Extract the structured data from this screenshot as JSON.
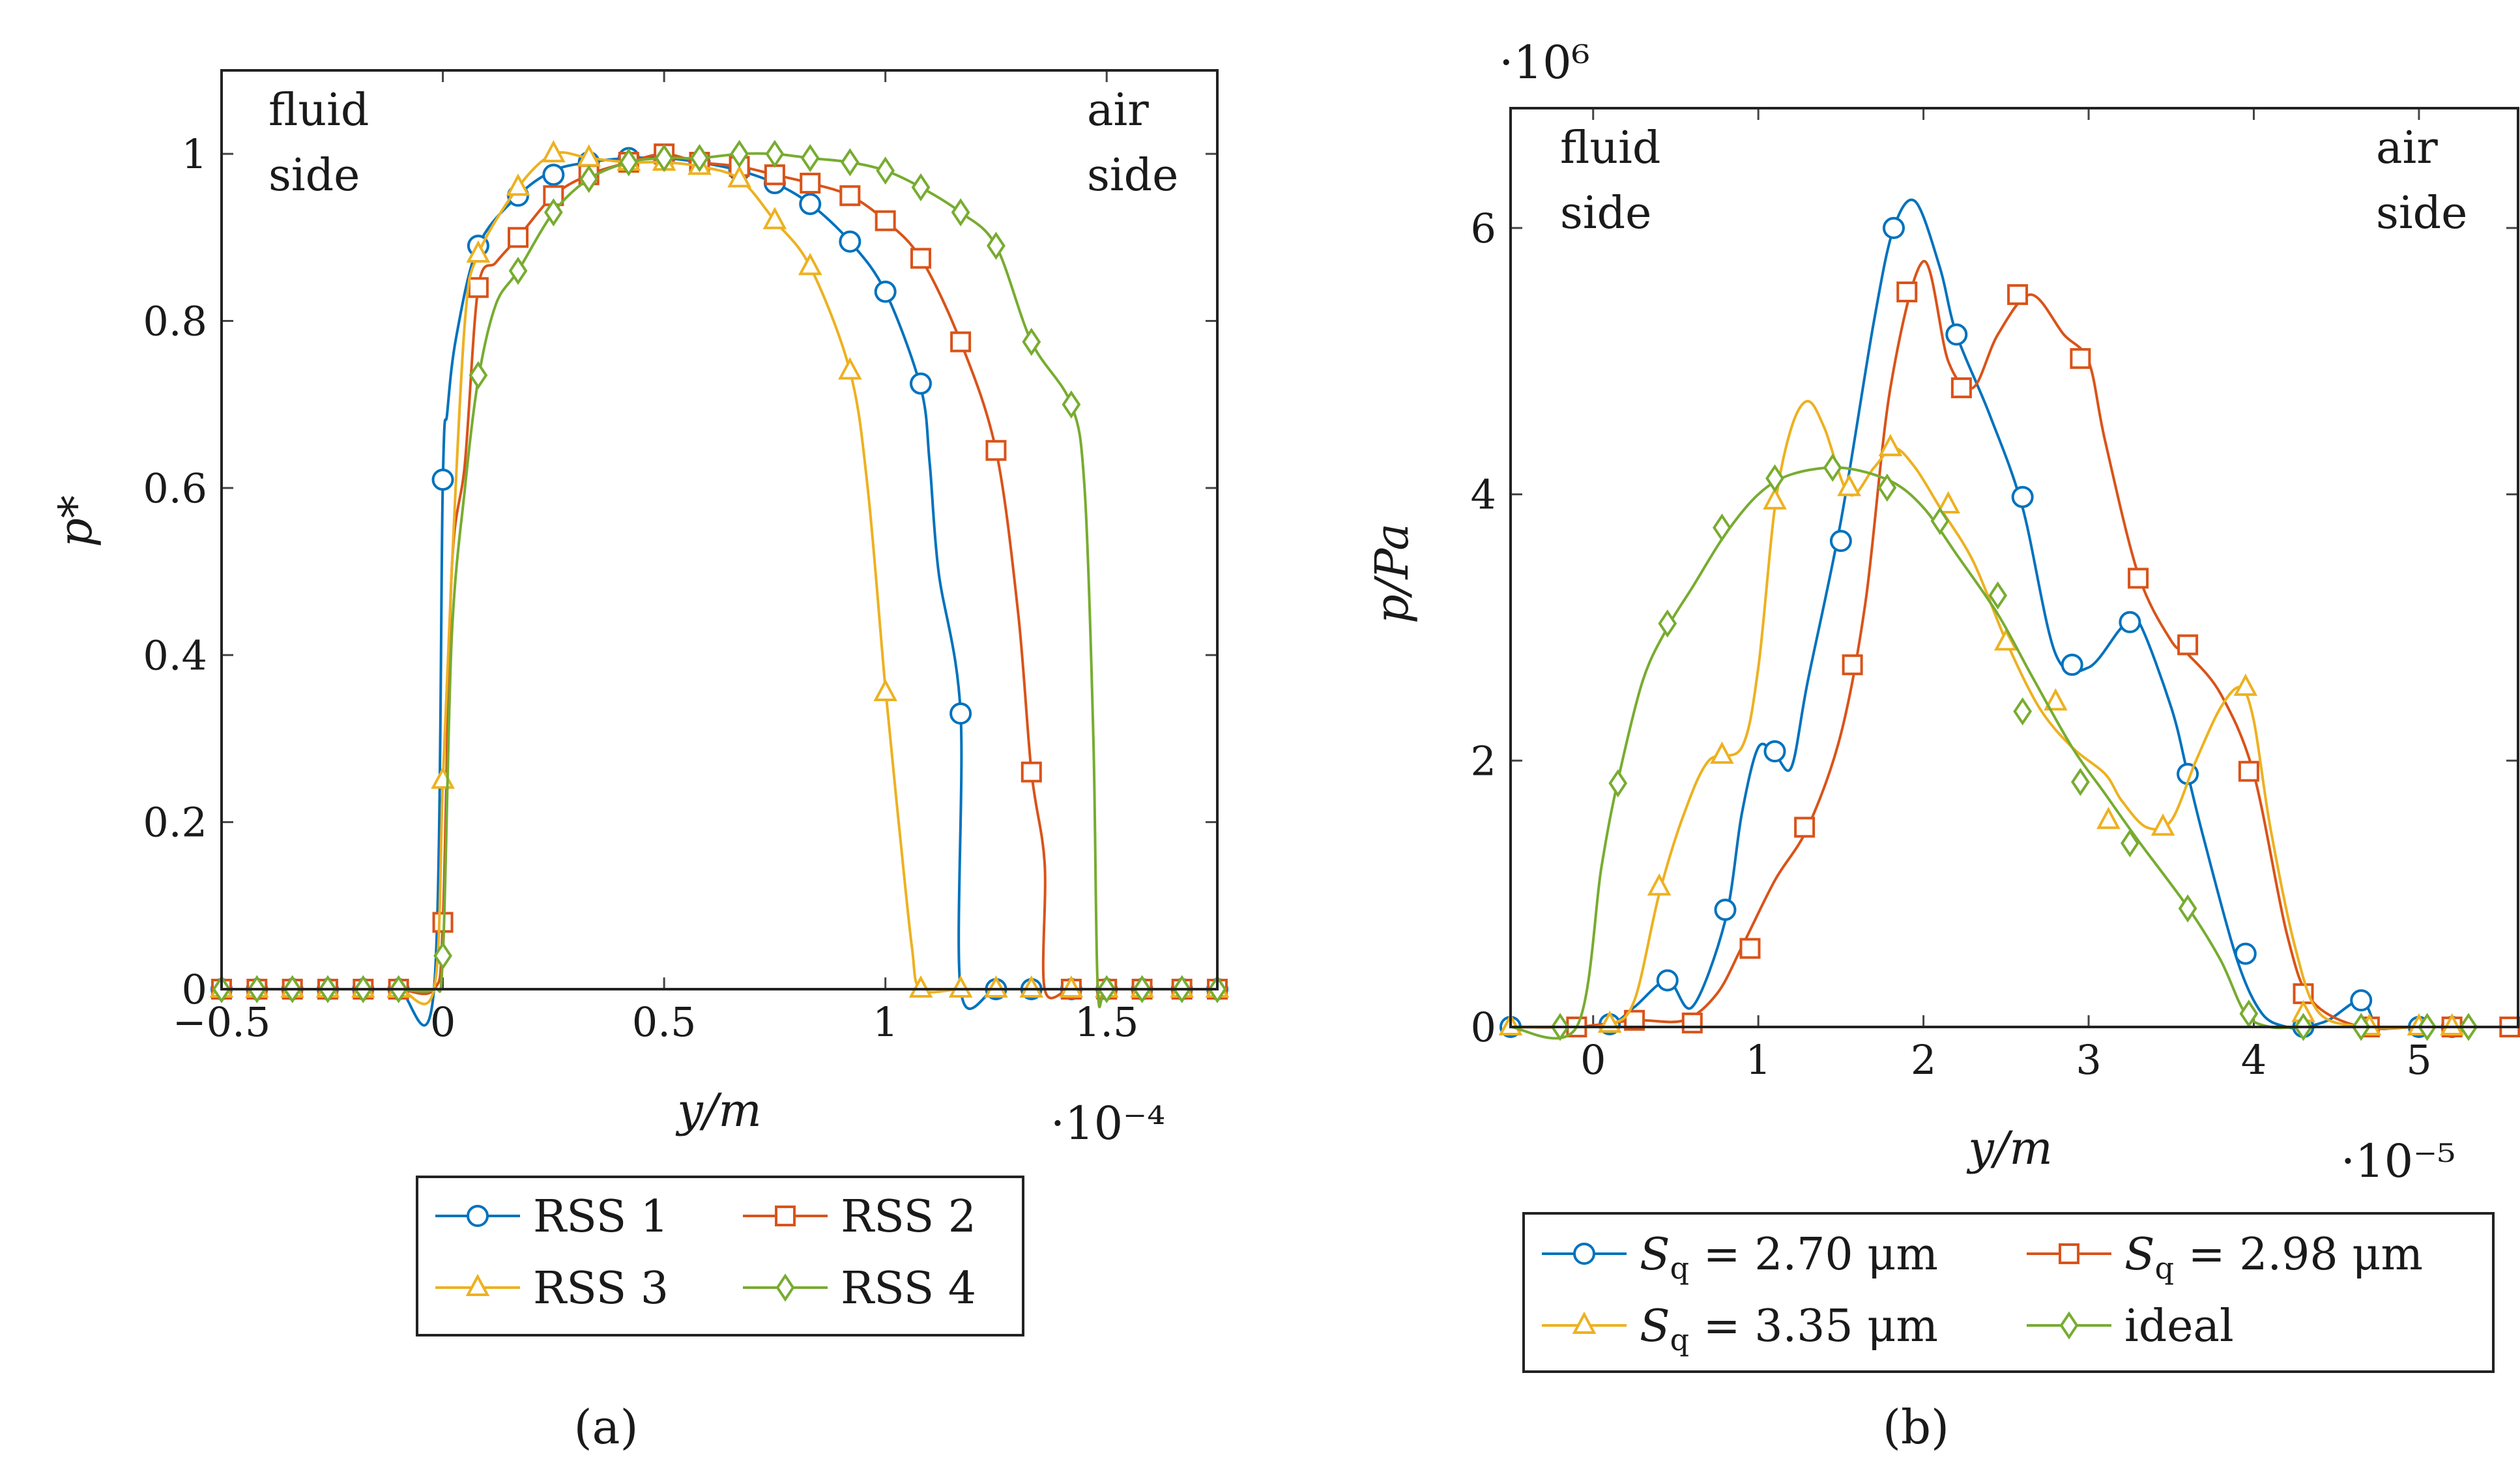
{
  "colors": {
    "s1": "#0072bd",
    "s2": "#d95319",
    "s3": "#edb120",
    "s4": "#77ac30"
  },
  "chart_data": [
    {
      "type": "line",
      "caption": "(a)",
      "xlabel": "y/m",
      "ylabel": "p*",
      "x_scale": "·10⁻⁴",
      "xlim": [
        -0.5,
        1.75
      ],
      "ylim": [
        0,
        1.1
      ],
      "xticks": [
        -0.5,
        0,
        0.5,
        1,
        1.5
      ],
      "xtick_labels": [
        "−0.5",
        "0",
        "0.5",
        "1",
        "1.5"
      ],
      "yticks": [
        0,
        0.2,
        0.4,
        0.6,
        0.8,
        1
      ],
      "ytick_labels": [
        "0",
        "0.2",
        "0.4",
        "0.6",
        "0.8",
        "1"
      ],
      "annotations": {
        "left": [
          "fluid",
          "side"
        ],
        "right": [
          "air",
          "side"
        ]
      },
      "series": [
        {
          "name": "RSS 1",
          "marker": "circle",
          "color": "s1",
          "x": [
            -0.5,
            -0.42,
            -0.34,
            -0.26,
            -0.18,
            -0.1,
            -0.02,
            0,
            0.01,
            0.03,
            0.08,
            0.17,
            0.25,
            0.33,
            0.42,
            0.5,
            0.58,
            0.67,
            0.75,
            0.83,
            0.92,
            1,
            1.08,
            1.1,
            1.12,
            1.17,
            1.17,
            1.25,
            1.33,
            1.42,
            1.5,
            1.58,
            1.67,
            1.75
          ],
          "y": [
            0,
            0,
            0,
            0,
            0,
            0,
            0,
            0.61,
            0.69,
            0.78,
            0.89,
            0.95,
            0.98,
            0.99,
            0.995,
            0.995,
            0.99,
            0.98,
            0.965,
            0.94,
            0.895,
            0.835,
            0.72,
            0.63,
            0.5,
            0.33,
            0,
            0,
            0,
            0,
            0,
            0,
            0,
            0
          ],
          "mx": [
            -0.5,
            -0.42,
            -0.34,
            -0.26,
            -0.18,
            -0.1,
            0,
            0.08,
            0.17,
            0.25,
            0.33,
            0.42,
            0.5,
            0.58,
            0.67,
            0.75,
            0.83,
            0.92,
            1,
            1.08,
            1.17,
            1.25,
            1.33,
            1.42,
            1.5,
            1.58,
            1.67,
            1.75
          ],
          "my": [
            0,
            0,
            0,
            0,
            0,
            0,
            0.61,
            0.89,
            0.95,
            0.975,
            0.99,
            0.995,
            0.995,
            0.99,
            0.98,
            0.965,
            0.94,
            0.895,
            0.835,
            0.725,
            0.33,
            0,
            0,
            0,
            0,
            0,
            0,
            0
          ]
        },
        {
          "name": "RSS 2",
          "marker": "square",
          "color": "s2",
          "x": [
            -0.5,
            -0.42,
            -0.34,
            -0.26,
            -0.18,
            -0.1,
            -0.02,
            0,
            0.02,
            0.05,
            0.08,
            0.12,
            0.17,
            0.25,
            0.33,
            0.42,
            0.5,
            0.58,
            0.67,
            0.75,
            0.83,
            0.92,
            1,
            1.08,
            1.17,
            1.25,
            1.3,
            1.33,
            1.36,
            1.36,
            1.42,
            1.5,
            1.58,
            1.67,
            1.75
          ],
          "y": [
            0,
            0,
            0,
            0,
            0,
            0,
            0,
            0.08,
            0.5,
            0.63,
            0.84,
            0.87,
            0.9,
            0.95,
            0.975,
            0.99,
            1,
            0.99,
            0.985,
            0.975,
            0.965,
            0.95,
            0.92,
            0.875,
            0.775,
            0.645,
            0.45,
            0.26,
            0.15,
            0,
            0,
            0,
            0,
            0,
            0
          ],
          "mx": [
            -0.5,
            -0.42,
            -0.34,
            -0.26,
            -0.18,
            -0.1,
            0,
            0.08,
            0.17,
            0.25,
            0.33,
            0.42,
            0.5,
            0.58,
            0.67,
            0.75,
            0.83,
            0.92,
            1,
            1.08,
            1.17,
            1.25,
            1.33,
            1.42,
            1.5,
            1.58,
            1.67,
            1.75
          ],
          "my": [
            0,
            0,
            0,
            0,
            0,
            0,
            0.08,
            0.84,
            0.9,
            0.95,
            0.975,
            0.99,
            1,
            0.99,
            0.985,
            0.975,
            0.965,
            0.95,
            0.92,
            0.875,
            0.775,
            0.645,
            0.26,
            0,
            0,
            0,
            0,
            0,
            0,
            0
          ]
        },
        {
          "name": "RSS 3",
          "marker": "triangle",
          "color": "s3",
          "x": [
            -0.5,
            -0.42,
            -0.34,
            -0.26,
            -0.18,
            -0.1,
            -0.02,
            0,
            0.02,
            0.05,
            0.08,
            0.17,
            0.25,
            0.33,
            0.42,
            0.5,
            0.58,
            0.67,
            0.75,
            0.83,
            0.92,
            0.96,
            1,
            1.03,
            1.06,
            1.08,
            1.17,
            1.25,
            1.33,
            1.42,
            1.5,
            1.58,
            1.67,
            1.75
          ],
          "y": [
            0,
            0,
            0,
            0,
            0,
            0,
            0,
            0.25,
            0.5,
            0.8,
            0.88,
            0.96,
            1,
            0.995,
            0.99,
            0.99,
            0.985,
            0.97,
            0.92,
            0.865,
            0.74,
            0.6,
            0.36,
            0.2,
            0.05,
            0,
            0,
            0,
            0,
            0,
            0,
            0,
            0,
            0
          ],
          "mx": [
            -0.5,
            -0.42,
            -0.34,
            -0.26,
            -0.18,
            -0.1,
            0,
            0.08,
            0.17,
            0.25,
            0.33,
            0.42,
            0.5,
            0.58,
            0.67,
            0.75,
            0.83,
            0.92,
            1,
            1.08,
            1.17,
            1.25,
            1.33,
            1.42,
            1.5,
            1.58,
            1.67,
            1.75
          ],
          "my": [
            0,
            0,
            0,
            0,
            0,
            0,
            0.25,
            0.88,
            0.96,
            1,
            0.995,
            0.99,
            0.99,
            0.985,
            0.97,
            0.92,
            0.865,
            0.74,
            0.355,
            0,
            0,
            0,
            0,
            0,
            0,
            0,
            0,
            0
          ]
        },
        {
          "name": "RSS 4",
          "marker": "diamond",
          "color": "s4",
          "x": [
            -0.5,
            -0.42,
            -0.34,
            -0.26,
            -0.18,
            -0.1,
            -0.02,
            0,
            0.02,
            0.05,
            0.08,
            0.12,
            0.17,
            0.25,
            0.33,
            0.42,
            0.5,
            0.58,
            0.67,
            0.75,
            0.83,
            0.92,
            1,
            1.08,
            1.17,
            1.25,
            1.33,
            1.42,
            1.45,
            1.47,
            1.48,
            1.5,
            1.58,
            1.67,
            1.75
          ],
          "y": [
            0,
            0,
            0,
            0,
            0,
            0,
            0,
            0.04,
            0.42,
            0.6,
            0.73,
            0.82,
            0.86,
            0.93,
            0.97,
            0.99,
            0.995,
            0.995,
            1,
            1,
            0.995,
            0.99,
            0.98,
            0.96,
            0.93,
            0.89,
            0.775,
            0.7,
            0.6,
            0.3,
            0,
            0,
            0,
            0,
            0
          ],
          "mx": [
            -0.5,
            -0.42,
            -0.34,
            -0.26,
            -0.18,
            -0.1,
            0,
            0.08,
            0.17,
            0.25,
            0.33,
            0.42,
            0.5,
            0.58,
            0.67,
            0.75,
            0.83,
            0.92,
            1,
            1.08,
            1.17,
            1.25,
            1.33,
            1.42,
            1.5,
            1.58,
            1.67,
            1.75
          ],
          "my": [
            0,
            0,
            0,
            0,
            0,
            0,
            0.04,
            0.735,
            0.86,
            0.93,
            0.97,
            0.99,
            0.995,
            0.995,
            1,
            1,
            0.995,
            0.99,
            0.98,
            0.96,
            0.93,
            0.89,
            0.775,
            0.7,
            0,
            0,
            0,
            0
          ]
        }
      ]
    },
    {
      "type": "line",
      "caption": "(b)",
      "xlabel": "y/m",
      "ylabel": "p/Pa",
      "x_scale": "·10⁻⁵",
      "y_scale": "·10⁶",
      "xlim": [
        -0.5,
        5.6
      ],
      "ylim": [
        0,
        6.9
      ],
      "xticks": [
        0,
        1,
        2,
        3,
        4,
        5
      ],
      "xtick_labels": [
        "0",
        "1",
        "2",
        "3",
        "4",
        "5"
      ],
      "yticks": [
        0,
        2,
        4,
        6
      ],
      "ytick_labels": [
        "0",
        "2",
        "4",
        "6"
      ],
      "annotations": {
        "left": [
          "fluid",
          "side"
        ],
        "right": [
          "air",
          "side"
        ]
      },
      "series": [
        {
          "name": "Sq = 2.70 μm",
          "name_parts": [
            "S",
            "q",
            " = 2.70 μm"
          ],
          "marker": "circle",
          "color": "s1",
          "x": [
            -0.5,
            -0.2,
            0.1,
            0.25,
            0.45,
            0.6,
            0.8,
            0.9,
            1.0,
            1.1,
            1.2,
            1.3,
            1.5,
            1.7,
            1.82,
            1.95,
            2.1,
            2.2,
            2.4,
            2.6,
            2.8,
            3.0,
            3.2,
            3.3,
            3.5,
            3.6,
            3.7,
            3.9,
            4.05,
            4.2,
            4.3,
            4.45,
            4.65,
            4.75,
            4.9,
            5.2,
            5.6
          ],
          "y": [
            0,
            0,
            0.02,
            0.15,
            0.35,
            0.15,
            0.8,
            1.6,
            2.1,
            2.05,
            1.95,
            2.6,
            3.8,
            5.3,
            6.0,
            6.2,
            5.7,
            5.2,
            4.6,
            3.9,
            2.8,
            2.7,
            3.0,
            3.05,
            2.4,
            1.9,
            1.4,
            0.5,
            0.1,
            0,
            0,
            0.05,
            0.2,
            0,
            0,
            0,
            0
          ],
          "mx": [
            -0.5,
            0.1,
            0.45,
            0.8,
            1.1,
            1.5,
            1.82,
            2.2,
            2.6,
            2.9,
            3.25,
            3.6,
            3.95,
            4.3,
            4.65,
            5.0,
            5.2
          ],
          "my": [
            0,
            0.02,
            0.35,
            0.88,
            2.07,
            3.65,
            6.0,
            5.2,
            3.98,
            2.72,
            3.04,
            1.9,
            0.55,
            0,
            0.2,
            0,
            0
          ]
        },
        {
          "name": "Sq = 2.98 μm",
          "name_parts": [
            "S",
            "q",
            " = 2.98 μm"
          ],
          "marker": "square",
          "color": "s2",
          "x": [
            -0.5,
            -0.1,
            0.25,
            0.55,
            0.75,
            0.9,
            1.1,
            1.3,
            1.5,
            1.65,
            1.8,
            2.0,
            2.15,
            2.3,
            2.45,
            2.65,
            2.85,
            3.0,
            3.1,
            3.3,
            3.5,
            3.6,
            3.8,
            4.0,
            4.2,
            4.35,
            4.65,
            5.0,
            5.3,
            5.6
          ],
          "y": [
            0,
            0,
            0.05,
            0.05,
            0.25,
            0.6,
            1.1,
            1.5,
            2.2,
            3.2,
            4.8,
            5.75,
            5.0,
            4.8,
            5.2,
            5.5,
            5.2,
            5.0,
            4.4,
            3.4,
            2.9,
            2.8,
            2.5,
            1.9,
            0.7,
            0.2,
            0,
            0,
            0,
            0
          ],
          "mx": [
            -0.1,
            0.25,
            0.6,
            0.95,
            1.28,
            1.57,
            1.9,
            2.23,
            2.57,
            2.95,
            3.3,
            3.6,
            3.97,
            4.3,
            4.7,
            5.2,
            5.55
          ],
          "my": [
            0,
            0.05,
            0.03,
            0.59,
            1.5,
            2.72,
            5.52,
            4.8,
            5.5,
            5.02,
            3.37,
            2.87,
            1.92,
            0.25,
            0,
            0,
            0
          ]
        },
        {
          "name": "Sq = 3.35 μm",
          "name_parts": [
            "S",
            "q",
            " = 3.35 μm"
          ],
          "marker": "triangle",
          "color": "s3",
          "x": [
            -0.5,
            -0.2,
            0.1,
            0.25,
            0.4,
            0.55,
            0.7,
            0.9,
            1.0,
            1.1,
            1.2,
            1.3,
            1.4,
            1.55,
            1.7,
            1.82,
            1.95,
            2.1,
            2.3,
            2.5,
            2.7,
            2.9,
            3.1,
            3.2,
            3.35,
            3.5,
            3.65,
            3.8,
            3.92,
            4.0,
            4.1,
            4.25,
            4.4,
            4.7,
            5.0,
            5.3,
            5.6
          ],
          "y": [
            0,
            0,
            0.02,
            0.2,
            1.0,
            1.6,
            2.0,
            2.1,
            2.7,
            3.9,
            4.5,
            4.7,
            4.5,
            4.0,
            4.2,
            4.35,
            4.2,
            3.9,
            3.5,
            2.9,
            2.4,
            2.1,
            1.9,
            1.7,
            1.5,
            1.55,
            2.0,
            2.4,
            2.55,
            2.3,
            1.5,
            0.6,
            0.1,
            0,
            0,
            0,
            0
          ],
          "mx": [
            -0.5,
            0.1,
            0.4,
            0.78,
            1.1,
            1.55,
            1.8,
            2.15,
            2.5,
            2.8,
            3.12,
            3.45,
            3.95,
            4.3,
            4.7,
            5.0,
            5.2
          ],
          "my": [
            0,
            0.02,
            1.05,
            2.04,
            3.95,
            4.05,
            4.35,
            3.92,
            2.89,
            2.44,
            1.55,
            1.5,
            2.55,
            0.1,
            0,
            0,
            0
          ]
        },
        {
          "name": "ideal",
          "marker": "diamond",
          "color": "s4",
          "x": [
            -0.5,
            -0.1,
            0.05,
            0.15,
            0.3,
            0.45,
            0.6,
            0.8,
            1.0,
            1.2,
            1.5,
            1.8,
            2.0,
            2.2,
            2.45,
            2.65,
            2.9,
            3.1,
            3.3,
            3.6,
            3.8,
            3.95,
            4.1,
            4.3,
            4.6,
            5.0,
            5.3,
            5.6
          ],
          "y": [
            0,
            0,
            1.2,
            1.85,
            2.6,
            3.0,
            3.3,
            3.7,
            4.0,
            4.15,
            4.2,
            4.1,
            3.9,
            3.55,
            3.1,
            2.65,
            2.1,
            1.75,
            1.4,
            0.9,
            0.5,
            0.1,
            0,
            0,
            0,
            0,
            0,
            0
          ],
          "mx": [
            -0.2,
            0.15,
            0.45,
            0.78,
            1.1,
            1.45,
            1.78,
            2.1,
            2.45,
            2.6,
            2.95,
            3.25,
            3.6,
            3.97,
            4.3,
            4.65,
            5.05,
            5.3
          ],
          "my": [
            0,
            1.83,
            3.03,
            3.75,
            4.12,
            4.2,
            4.05,
            3.8,
            3.24,
            2.37,
            1.84,
            1.38,
            0.89,
            0.1,
            0,
            0,
            0,
            0
          ]
        }
      ]
    }
  ]
}
